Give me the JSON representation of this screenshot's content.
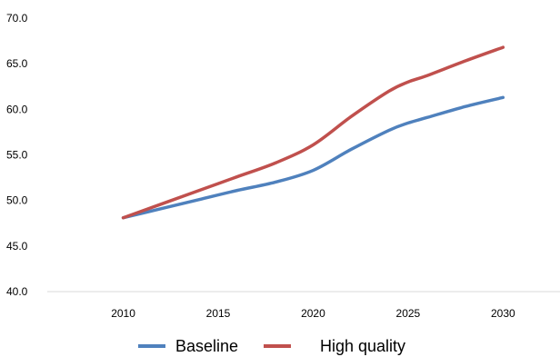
{
  "chart_data": {
    "type": "line",
    "title": "",
    "xlabel": "",
    "ylabel": "",
    "x": [
      2010,
      2012,
      2014,
      2016,
      2018,
      2020,
      2022,
      2024,
      2025,
      2026,
      2028,
      2030
    ],
    "xticks": [
      2010,
      2015,
      2020,
      2025,
      2030
    ],
    "xtick_labels": [
      "2010",
      "2015",
      "2020",
      "2025",
      "2030"
    ],
    "xlim": [
      2006,
      2033
    ],
    "ylim": [
      40.0,
      70.0
    ],
    "yticks": [
      40.0,
      45.0,
      50.0,
      55.0,
      60.0,
      65.0,
      70.0
    ],
    "ytick_labels": [
      "40.0",
      "45.0",
      "50.0",
      "55.0",
      "60.0",
      "65.0",
      "70.0"
    ],
    "grid": false,
    "legend_position": "bottom",
    "series": [
      {
        "name": "Baseline",
        "color": "#4f81bd",
        "values": [
          48.1,
          49.1,
          50.1,
          51.1,
          52.0,
          53.3,
          55.6,
          57.7,
          58.5,
          59.1,
          60.3,
          61.3
        ]
      },
      {
        "name": "High quality",
        "color": "#c0504d",
        "values": [
          48.1,
          49.6,
          51.1,
          52.6,
          54.1,
          56.1,
          59.2,
          62.0,
          63.0,
          63.7,
          65.3,
          66.8
        ]
      }
    ]
  }
}
